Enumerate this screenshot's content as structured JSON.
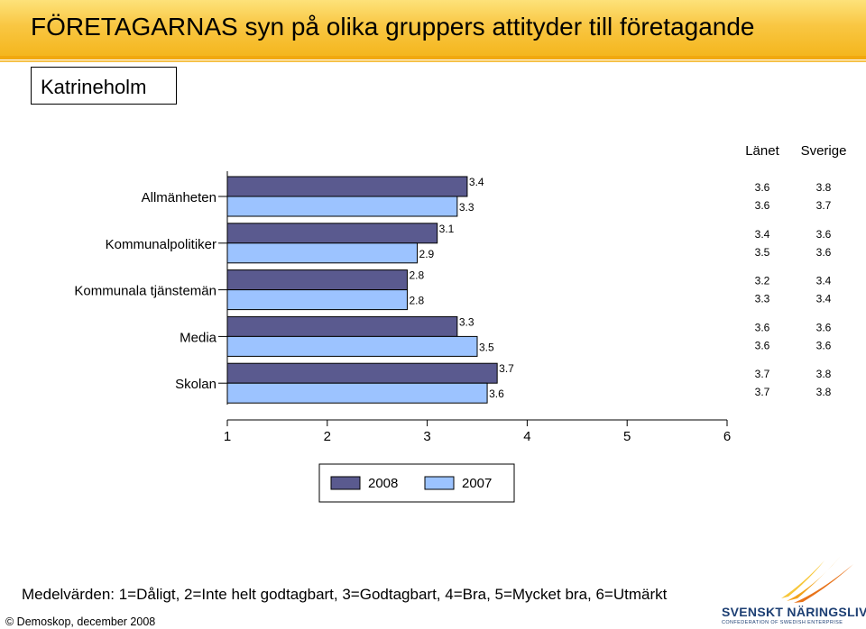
{
  "header": {
    "title": "FÖRETAGARNAS syn på olika gruppers attityder till företagande",
    "region": "Katrineholm"
  },
  "chart_data": {
    "type": "bar",
    "orientation": "horizontal",
    "categories": [
      "Allmänheten",
      "Kommunalpolitiker",
      "Kommunala tjänstemän",
      "Media",
      "Skolan"
    ],
    "series": [
      {
        "name": "2008",
        "values": [
          3.4,
          3.1,
          2.8,
          3.3,
          3.7
        ],
        "color": "#5a5a8f"
      },
      {
        "name": "2007",
        "values": [
          3.3,
          2.9,
          2.8,
          3.5,
          3.6
        ],
        "color": "#9cc3ff"
      }
    ],
    "xlim": [
      1,
      6
    ],
    "xticks": [
      "1",
      "2",
      "3",
      "4",
      "5",
      "6"
    ],
    "comparison_headers": [
      "Länet",
      "Sverige"
    ],
    "comparison": {
      "Länet": {
        "2008": [
          "3.6",
          "3.4",
          "3.2",
          "3.6",
          "3.7"
        ],
        "2007": [
          "3.6",
          "3.5",
          "3.3",
          "3.6",
          "3.7"
        ]
      },
      "Sverige": {
        "2008": [
          "3.8",
          "3.6",
          "3.4",
          "3.6",
          "3.8"
        ],
        "2007": [
          "3.7",
          "3.6",
          "3.4",
          "3.6",
          "3.8"
        ]
      }
    },
    "legend": "bottom-center"
  },
  "footer": {
    "scale_note": "Medelvärden: 1=Dåligt, 2=Inte helt godtagbart, 3=Godtagbart, 4=Bra, 5=Mycket bra, 6=Utmärkt",
    "credit": "© Demoskop, december 2008",
    "logo_name": "SVENSKT NÄRINGSLIV",
    "logo_tagline": "CONFEDERATION OF SWEDISH ENTERPRISE"
  }
}
